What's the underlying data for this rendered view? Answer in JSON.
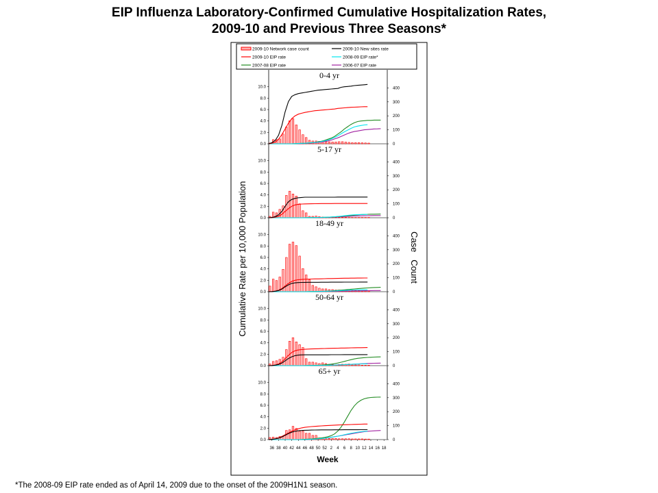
{
  "title_line1": "EIP Influenza Laboratory-Confirmed Cumulative Hospitalization Rates,",
  "title_line2": "2009-10 and Previous Three Seasons*",
  "footnote": "*The 2008-09 EIP rate ended as of April 14, 2009 due to the onset of the 2009H1N1 season.",
  "chart_data": {
    "type": "line",
    "title": "EIP Influenza Laboratory-Confirmed Cumulative Hospitalization Rates, 2009-10 and Previous Three Seasons*",
    "xlabel": "Week",
    "ylabel": "Cumulative Rate per 10,000 Population",
    "ylabel_right": "Case   Count",
    "x_tick_labels": [
      "36",
      "38",
      "40",
      "42",
      "44",
      "46",
      "48",
      "50",
      "52",
      "2",
      "4",
      "6",
      "8",
      "10",
      "12",
      "14",
      "16",
      "18"
    ],
    "ylim": [
      0,
      12
    ],
    "y_ticks": [
      "0.0",
      "2.0",
      "4.0",
      "6.0",
      "8.0",
      "10.0"
    ],
    "ylim_right": [
      0,
      490
    ],
    "y_ticks_right": [
      "0",
      "100",
      "200",
      "300",
      "400"
    ],
    "legend": [
      {
        "name": "2009-10 Network case count",
        "kind": "bar",
        "color": "#ff0000"
      },
      {
        "name": "2009-10 New sites rate",
        "kind": "line",
        "color": "#000000"
      },
      {
        "name": "2009-10 EIP rate",
        "kind": "line",
        "color": "#ff0000"
      },
      {
        "name": "2008-09 EIP rate*",
        "kind": "line",
        "color": "#00e5ee"
      },
      {
        "name": "2007-08 EIP rate",
        "kind": "line",
        "color": "#228b22"
      },
      {
        "name": "2006-07 EIP rate",
        "kind": "line",
        "color": "#a020a0"
      }
    ],
    "legend_position": "top",
    "week_index_note": "x index 0 = week 35, one step per week through week 19 (37 points)",
    "panels": [
      {
        "label": "0-4 yr",
        "case_count": [
          5,
          30,
          30,
          35,
          70,
          120,
          165,
          180,
          135,
          100,
          65,
          45,
          25,
          20,
          20,
          18,
          15,
          15,
          14,
          13,
          13,
          15,
          15,
          12,
          10,
          8,
          8,
          8,
          7,
          6,
          5
        ],
        "series": {
          "new_sites": [
            0,
            0.2,
            0.6,
            1.5,
            3.2,
            5.6,
            7.4,
            8.3,
            8.6,
            8.8,
            8.9,
            9.0,
            9.1,
            9.2,
            9.3,
            9.4,
            9.45,
            9.5,
            9.55,
            9.6,
            9.65,
            9.7,
            9.9,
            10.0,
            10.05,
            10.1,
            10.2,
            10.25,
            10.3,
            10.35,
            10.4
          ],
          "eip_2009": [
            0,
            0.1,
            0.3,
            0.8,
            1.6,
            2.6,
            3.6,
            4.4,
            4.9,
            5.2,
            5.35,
            5.5,
            5.6,
            5.7,
            5.8,
            5.85,
            5.9,
            5.95,
            6.0,
            6.05,
            6.1,
            6.2,
            6.25,
            6.3,
            6.35,
            6.4,
            6.42,
            6.45,
            6.48,
            6.5,
            6.5
          ],
          "eip_2008": [
            0,
            0,
            0,
            0,
            0,
            0,
            0,
            0,
            0.02,
            0.05,
            0.08,
            0.1,
            0.15,
            0.2,
            0.25,
            0.3,
            0.4,
            0.5,
            0.65,
            0.85,
            1.1,
            1.4,
            1.75,
            2.1,
            2.4,
            2.7,
            2.95,
            3.1,
            3.2,
            3.3,
            3.35
          ],
          "eip_2007": [
            0,
            0,
            0,
            0,
            0,
            0,
            0,
            0,
            0.02,
            0.05,
            0.08,
            0.1,
            0.15,
            0.2,
            0.25,
            0.35,
            0.45,
            0.6,
            0.8,
            1.0,
            1.3,
            1.7,
            2.1,
            2.6,
            3.0,
            3.4,
            3.7,
            3.9,
            4.0,
            4.05,
            4.1,
            4.1,
            4.15,
            4.15,
            4.15
          ],
          "eip_2006": [
            0,
            0,
            0,
            0,
            0,
            0,
            0,
            0,
            0,
            0.02,
            0.04,
            0.06,
            0.1,
            0.15,
            0.2,
            0.25,
            0.3,
            0.4,
            0.5,
            0.65,
            0.85,
            1.05,
            1.3,
            1.55,
            1.8,
            2.0,
            2.15,
            2.25,
            2.35,
            2.45,
            2.5,
            2.55,
            2.6,
            2.62,
            2.65
          ]
        }
      },
      {
        "label": "5-17 yr",
        "case_count": [
          10,
          40,
          35,
          60,
          85,
          160,
          190,
          170,
          155,
          100,
          50,
          35,
          10,
          10,
          12,
          8,
          5,
          3,
          3,
          3,
          3,
          3,
          3,
          3,
          2,
          2,
          2,
          2,
          2,
          2,
          2
        ],
        "series": {
          "new_sites": [
            0,
            0.05,
            0.2,
            0.5,
            1.1,
            2.0,
            2.8,
            3.2,
            3.4,
            3.5,
            3.55,
            3.6,
            3.6,
            3.6,
            3.6,
            3.6,
            3.6,
            3.6,
            3.6,
            3.6,
            3.6,
            3.62,
            3.62,
            3.62,
            3.62,
            3.62,
            3.62,
            3.63,
            3.63,
            3.63,
            3.63
          ],
          "eip_2009": [
            0,
            0.02,
            0.1,
            0.25,
            0.6,
            1.1,
            1.6,
            2.0,
            2.25,
            2.35,
            2.4,
            2.42,
            2.44,
            2.45,
            2.46,
            2.47,
            2.48,
            2.48,
            2.49,
            2.49,
            2.5,
            2.5,
            2.5,
            2.5,
            2.5,
            2.5,
            2.5,
            2.5,
            2.5,
            2.5,
            2.5
          ],
          "eip_2008": [
            0,
            0,
            0,
            0,
            0,
            0,
            0,
            0,
            0,
            0,
            0,
            0.01,
            0.02,
            0.03,
            0.04,
            0.05,
            0.06,
            0.08,
            0.1,
            0.13,
            0.17,
            0.22,
            0.28,
            0.35,
            0.42,
            0.48,
            0.52,
            0.55,
            0.57,
            0.58,
            0.58
          ],
          "eip_2007": [
            0,
            0,
            0,
            0,
            0,
            0,
            0,
            0,
            0,
            0,
            0,
            0.01,
            0.02,
            0.03,
            0.04,
            0.05,
            0.06,
            0.08,
            0.1,
            0.13,
            0.16,
            0.2,
            0.25,
            0.3,
            0.35,
            0.4,
            0.45,
            0.5,
            0.55,
            0.58,
            0.6,
            0.62,
            0.63,
            0.64,
            0.65
          ],
          "eip_2006": [
            0,
            0,
            0,
            0,
            0,
            0,
            0,
            0,
            0,
            0,
            0,
            0,
            0.01,
            0.02,
            0.03,
            0.04,
            0.05,
            0.06,
            0.08,
            0.1,
            0.12,
            0.15,
            0.18,
            0.21,
            0.24,
            0.27,
            0.3,
            0.32,
            0.34,
            0.35,
            0.36,
            0.37,
            0.38,
            0.38,
            0.38
          ]
        }
      },
      {
        "label": "18-49 yr",
        "case_count": [
          40,
          90,
          80,
          105,
          160,
          245,
          340,
          355,
          330,
          255,
          165,
          120,
          85,
          45,
          35,
          25,
          20,
          20,
          15,
          15,
          12,
          12,
          10,
          10,
          10,
          8,
          8,
          8,
          5,
          5,
          5
        ],
        "series": {
          "new_sites": [
            0,
            0.02,
            0.08,
            0.2,
            0.45,
            0.85,
            1.2,
            1.45,
            1.55,
            1.6,
            1.62,
            1.63,
            1.64,
            1.65,
            1.65,
            1.65,
            1.66,
            1.66,
            1.66,
            1.67,
            1.67,
            1.67,
            1.67,
            1.68,
            1.68,
            1.68,
            1.68,
            1.68,
            1.69,
            1.69,
            1.69
          ],
          "eip_2009": [
            0,
            0.02,
            0.1,
            0.25,
            0.55,
            1.0,
            1.45,
            1.8,
            2.0,
            2.1,
            2.15,
            2.18,
            2.2,
            2.22,
            2.24,
            2.25,
            2.26,
            2.28,
            2.3,
            2.31,
            2.32,
            2.33,
            2.35,
            2.36,
            2.37,
            2.38,
            2.38,
            2.39,
            2.39,
            2.4,
            2.4
          ],
          "eip_2008": [
            0,
            0,
            0,
            0,
            0,
            0,
            0,
            0,
            0,
            0,
            0,
            0,
            0.01,
            0.02,
            0.03,
            0.04,
            0.05,
            0.07,
            0.09,
            0.11,
            0.13,
            0.16,
            0.19,
            0.22,
            0.25,
            0.28,
            0.3,
            0.32,
            0.33,
            0.34,
            0.34
          ],
          "eip_2007": [
            0,
            0,
            0,
            0,
            0,
            0,
            0,
            0,
            0,
            0,
            0,
            0,
            0.01,
            0.02,
            0.03,
            0.05,
            0.07,
            0.09,
            0.12,
            0.15,
            0.19,
            0.23,
            0.28,
            0.33,
            0.38,
            0.43,
            0.48,
            0.53,
            0.58,
            0.62,
            0.66,
            0.7,
            0.73,
            0.75,
            0.77
          ],
          "eip_2006": [
            0,
            0,
            0,
            0,
            0,
            0,
            0,
            0,
            0,
            0,
            0,
            0,
            0,
            0.01,
            0.02,
            0.03,
            0.04,
            0.05,
            0.06,
            0.07,
            0.08,
            0.09,
            0.1,
            0.11,
            0.12,
            0.13,
            0.14,
            0.15,
            0.16,
            0.17,
            0.18,
            0.19,
            0.2,
            0.2,
            0.2
          ]
        }
      },
      {
        "label": "50-64 yr",
        "case_count": [
          12,
          30,
          35,
          45,
          60,
          115,
          175,
          200,
          170,
          150,
          130,
          50,
          25,
          25,
          20,
          15,
          20,
          15,
          10,
          8,
          5,
          8,
          10,
          10,
          12,
          5,
          5,
          12,
          3,
          3,
          3
        ],
        "series": {
          "new_sites": [
            0,
            0.02,
            0.08,
            0.2,
            0.45,
            0.85,
            1.25,
            1.55,
            1.75,
            1.85,
            1.88,
            1.9,
            1.9,
            1.9,
            1.9,
            1.9,
            1.9,
            1.9,
            1.9,
            1.92,
            1.92,
            1.92,
            1.92,
            1.93,
            1.93,
            1.93,
            1.93,
            1.93,
            1.93,
            1.93,
            1.93
          ],
          "eip_2009": [
            0,
            0.03,
            0.12,
            0.3,
            0.65,
            1.2,
            1.8,
            2.3,
            2.6,
            2.75,
            2.82,
            2.87,
            2.9,
            2.93,
            2.95,
            2.97,
            2.99,
            3.0,
            3.02,
            3.04,
            3.05,
            3.06,
            3.08,
            3.09,
            3.1,
            3.12,
            3.13,
            3.14,
            3.15,
            3.16,
            3.17
          ],
          "eip_2008": [
            0,
            0,
            0,
            0,
            0,
            0,
            0,
            0,
            0,
            0,
            0,
            0,
            0.01,
            0.02,
            0.03,
            0.04,
            0.05,
            0.06,
            0.07,
            0.08,
            0.1,
            0.12,
            0.14,
            0.17,
            0.2,
            0.23,
            0.26,
            0.28,
            0.3,
            0.32,
            0.33
          ],
          "eip_2007": [
            0,
            0,
            0,
            0,
            0,
            0,
            0,
            0,
            0,
            0,
            0,
            0.01,
            0.02,
            0.03,
            0.05,
            0.07,
            0.1,
            0.14,
            0.19,
            0.26,
            0.35,
            0.46,
            0.6,
            0.75,
            0.9,
            1.05,
            1.18,
            1.28,
            1.35,
            1.4,
            1.44,
            1.47,
            1.5,
            1.52,
            1.54
          ],
          "eip_2006": [
            0,
            0,
            0,
            0,
            0,
            0,
            0,
            0,
            0,
            0,
            0,
            0,
            0.01,
            0.02,
            0.03,
            0.04,
            0.05,
            0.06,
            0.08,
            0.1,
            0.12,
            0.14,
            0.16,
            0.18,
            0.2,
            0.23,
            0.26,
            0.29,
            0.32,
            0.35,
            0.38,
            0.4,
            0.42,
            0.43,
            0.44
          ]
        }
      },
      {
        "label": "65+ yr",
        "case_count": [
          15,
          18,
          15,
          22,
          25,
          65,
          70,
          95,
          80,
          60,
          60,
          45,
          45,
          30,
          30,
          12,
          10,
          12,
          8,
          8,
          8,
          6,
          6,
          6,
          6,
          5,
          5,
          5,
          5,
          4,
          4
        ],
        "series": {
          "new_sites": [
            0,
            0.05,
            0.12,
            0.25,
            0.45,
            0.75,
            1.05,
            1.3,
            1.45,
            1.55,
            1.6,
            1.63,
            1.65,
            1.67,
            1.68,
            1.69,
            1.7,
            1.7,
            1.71,
            1.71,
            1.72,
            1.72,
            1.72,
            1.73,
            1.73,
            1.73,
            1.73,
            1.73,
            1.74,
            1.74,
            1.74
          ],
          "eip_2009": [
            0,
            0.05,
            0.15,
            0.3,
            0.55,
            0.85,
            1.15,
            1.45,
            1.7,
            1.9,
            2.05,
            2.15,
            2.22,
            2.28,
            2.32,
            2.36,
            2.4,
            2.44,
            2.47,
            2.5,
            2.53,
            2.56,
            2.58,
            2.6,
            2.62,
            2.64,
            2.66,
            2.68,
            2.7,
            2.72,
            2.73
          ],
          "eip_2008": [
            0,
            0,
            0,
            0,
            0,
            0,
            0,
            0,
            0,
            0,
            0,
            0.02,
            0.04,
            0.07,
            0.1,
            0.14,
            0.19,
            0.25,
            0.32,
            0.4,
            0.5,
            0.6,
            0.72,
            0.85,
            0.98,
            1.1,
            1.2,
            1.3,
            1.38,
            1.44,
            1.48
          ],
          "eip_2007": [
            0,
            0,
            0,
            0,
            0,
            0,
            0,
            0,
            0,
            0,
            0.02,
            0.05,
            0.08,
            0.12,
            0.17,
            0.23,
            0.3,
            0.38,
            0.5,
            0.7,
            1.0,
            1.5,
            2.2,
            3.1,
            4.1,
            5.1,
            5.9,
            6.5,
            6.9,
            7.15,
            7.3,
            7.38,
            7.42,
            7.44,
            7.45
          ],
          "eip_2006": [
            0,
            0,
            0,
            0,
            0,
            0,
            0,
            0,
            0,
            0,
            0,
            0.01,
            0.03,
            0.06,
            0.1,
            0.15,
            0.2,
            0.26,
            0.33,
            0.41,
            0.5,
            0.6,
            0.7,
            0.8,
            0.9,
            1.0,
            1.1,
            1.2,
            1.3,
            1.38,
            1.45,
            1.5,
            1.54,
            1.57,
            1.6
          ]
        }
      }
    ]
  }
}
